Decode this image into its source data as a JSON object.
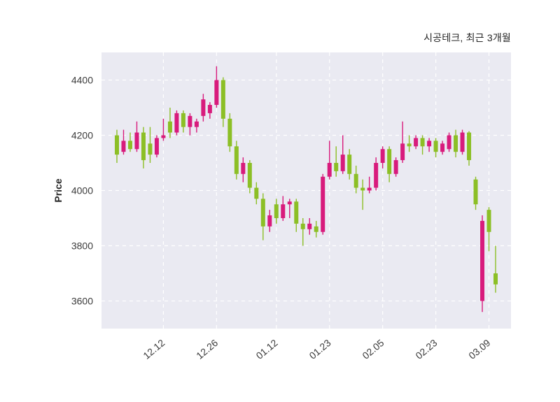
{
  "title": "시공테크, 최근 3개월",
  "chart_data": {
    "type": "candlestick",
    "title": "시공테크, 최근 3개월",
    "ylabel": "Price",
    "ylim": [
      3500,
      4500
    ],
    "yticks": [
      3600,
      3800,
      4000,
      4200,
      4400
    ],
    "xticks": [
      {
        "label": "12.12",
        "index": 7
      },
      {
        "label": "12.26",
        "index": 15
      },
      {
        "label": "01.12",
        "index": 24
      },
      {
        "label": "01.23",
        "index": 32
      },
      {
        "label": "02.05",
        "index": 40
      },
      {
        "label": "02.23",
        "index": 48
      },
      {
        "label": "03.09",
        "index": 56
      }
    ],
    "grid": "white-dashed",
    "legend": "none",
    "colors": {
      "up": "#d81b7c",
      "down": "#8cbf26",
      "plot_bg": "#eaeaf2",
      "grid": "#ffffff",
      "tick_text": "#3b3b3b",
      "title_text": "#262626"
    },
    "candles_ohlc": [
      [
        4200,
        4220,
        4100,
        4130
      ],
      [
        4140,
        4220,
        4130,
        4180
      ],
      [
        4180,
        4210,
        4140,
        4150
      ],
      [
        4150,
        4250,
        4140,
        4210
      ],
      [
        4210,
        4230,
        4080,
        4110
      ],
      [
        4170,
        4230,
        4100,
        4130
      ],
      [
        4130,
        4200,
        4120,
        4190
      ],
      [
        4190,
        4260,
        4180,
        4200
      ],
      [
        4250,
        4300,
        4190,
        4210
      ],
      [
        4210,
        4290,
        4200,
        4280
      ],
      [
        4280,
        4290,
        4210,
        4230
      ],
      [
        4230,
        4280,
        4200,
        4270
      ],
      [
        4230,
        4260,
        4210,
        4250
      ],
      [
        4270,
        4350,
        4250,
        4330
      ],
      [
        4280,
        4320,
        4260,
        4310
      ],
      [
        4310,
        4450,
        4300,
        4400
      ],
      [
        4400,
        4410,
        4230,
        4260
      ],
      [
        4260,
        4280,
        4140,
        4160
      ],
      [
        4160,
        4180,
        4040,
        4060
      ],
      [
        4060,
        4120,
        4030,
        4100
      ],
      [
        4100,
        4110,
        3990,
        4010
      ],
      [
        4010,
        4030,
        3950,
        3970
      ],
      [
        3970,
        3990,
        3820,
        3870
      ],
      [
        3870,
        3930,
        3850,
        3910
      ],
      [
        3950,
        3970,
        3880,
        3900
      ],
      [
        3900,
        3980,
        3890,
        3950
      ],
      [
        3950,
        3970,
        3900,
        3960
      ],
      [
        3960,
        3970,
        3850,
        3880
      ],
      [
        3880,
        3900,
        3800,
        3860
      ],
      [
        3860,
        3900,
        3840,
        3880
      ],
      [
        3870,
        3890,
        3830,
        3850
      ],
      [
        3850,
        4060,
        3840,
        4050
      ],
      [
        4050,
        4180,
        4040,
        4100
      ],
      [
        4100,
        4160,
        4050,
        4070
      ],
      [
        4070,
        4200,
        4060,
        4130
      ],
      [
        4130,
        4150,
        4040,
        4060
      ],
      [
        4060,
        4090,
        3990,
        4010
      ],
      [
        4010,
        4040,
        3930,
        4000
      ],
      [
        4000,
        4050,
        3990,
        4010
      ],
      [
        4010,
        4120,
        4000,
        4100
      ],
      [
        4100,
        4160,
        4080,
        4150
      ],
      [
        4150,
        4160,
        4030,
        4060
      ],
      [
        4060,
        4120,
        4050,
        4110
      ],
      [
        4110,
        4250,
        4100,
        4170
      ],
      [
        4170,
        4200,
        4140,
        4160
      ],
      [
        4160,
        4200,
        4150,
        4190
      ],
      [
        4190,
        4200,
        4130,
        4160
      ],
      [
        4160,
        4190,
        4140,
        4180
      ],
      [
        4180,
        4190,
        4120,
        4140
      ],
      [
        4140,
        4180,
        4130,
        4170
      ],
      [
        4150,
        4210,
        4140,
        4200
      ],
      [
        4200,
        4220,
        4120,
        4140
      ],
      [
        4140,
        4220,
        4130,
        4210
      ],
      [
        4210,
        4215,
        4090,
        4110
      ],
      [
        4040,
        4050,
        3930,
        3950
      ],
      [
        3600,
        3910,
        3560,
        3890
      ],
      [
        3930,
        3940,
        3780,
        3850
      ],
      [
        3700,
        3800,
        3630,
        3660
      ]
    ]
  }
}
